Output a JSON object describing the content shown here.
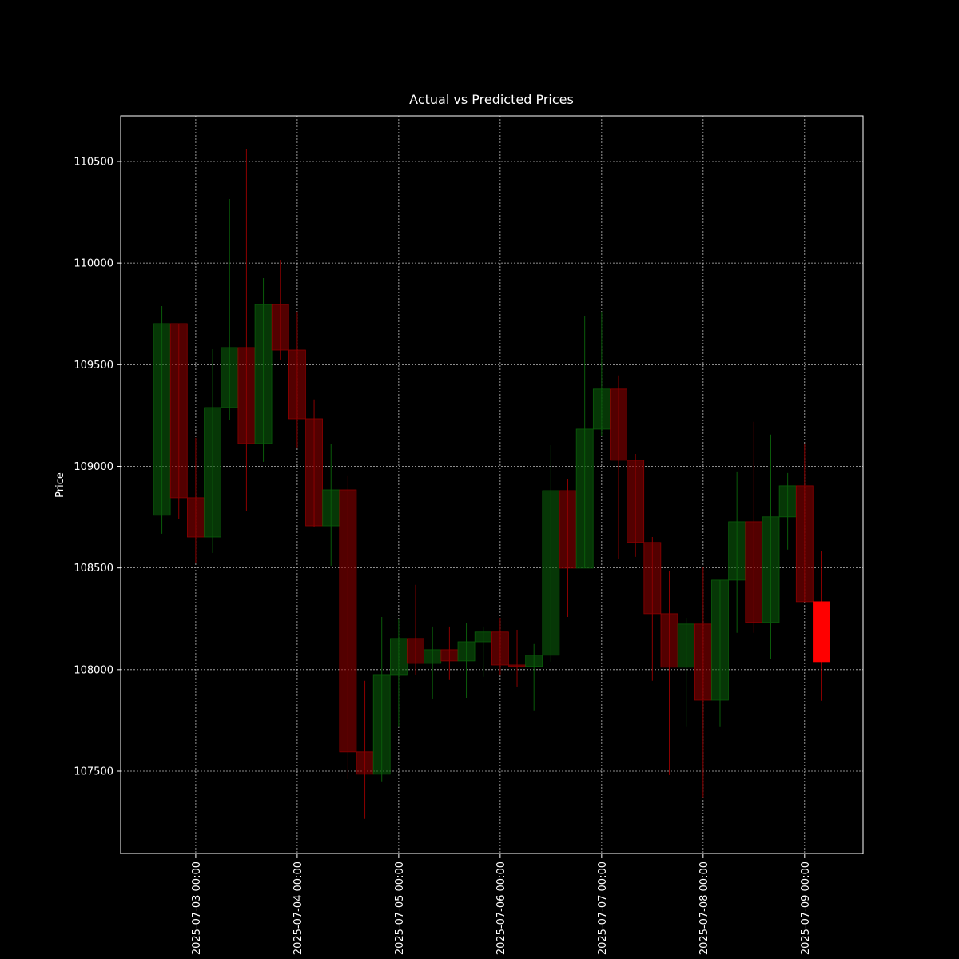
{
  "chart_data": {
    "type": "candlestick",
    "title": "Actual vs Predicted Prices",
    "ylabel": "Price",
    "x": [
      "2025-07-02 16:00",
      "2025-07-02 20:00",
      "2025-07-03 00:00",
      "2025-07-03 04:00",
      "2025-07-03 08:00",
      "2025-07-03 12:00",
      "2025-07-03 16:00",
      "2025-07-03 20:00",
      "2025-07-04 00:00",
      "2025-07-04 04:00",
      "2025-07-04 08:00",
      "2025-07-04 12:00",
      "2025-07-04 16:00",
      "2025-07-04 20:00",
      "2025-07-05 00:00",
      "2025-07-05 04:00",
      "2025-07-05 08:00",
      "2025-07-05 12:00",
      "2025-07-05 16:00",
      "2025-07-05 20:00",
      "2025-07-06 00:00",
      "2025-07-06 04:00",
      "2025-07-06 08:00",
      "2025-07-06 12:00",
      "2025-07-06 16:00",
      "2025-07-06 20:00",
      "2025-07-07 00:00",
      "2025-07-07 04:00",
      "2025-07-07 08:00",
      "2025-07-07 12:00",
      "2025-07-07 16:00",
      "2025-07-07 20:00",
      "2025-07-08 00:00",
      "2025-07-08 04:00",
      "2025-07-08 08:00",
      "2025-07-08 12:00",
      "2025-07-08 16:00",
      "2025-07-08 20:00",
      "2025-07-09 00:00"
    ],
    "open": [
      108759,
      109702,
      108845,
      108652,
      109289,
      109584,
      109112,
      109796,
      109572,
      109234,
      108707,
      108884,
      107595,
      107485,
      107972,
      108153,
      108031,
      108098,
      108043,
      108137,
      108185,
      108023,
      108016,
      108071,
      108880,
      108499,
      109183,
      109380,
      109030,
      108625,
      108275,
      108012,
      108224,
      107850,
      108440,
      108727,
      108232,
      108751,
      108904
    ],
    "high": [
      109788,
      109702,
      109140,
      109576,
      110315,
      110563,
      109926,
      110016,
      109761,
      109329,
      109108,
      108955,
      107945,
      108259,
      108248,
      108417,
      108212,
      108212,
      108228,
      108212,
      108255,
      108196,
      108126,
      109104,
      108939,
      109741,
      109761,
      109447,
      109061,
      108652,
      108483,
      108255,
      108503,
      108440,
      108975,
      109219,
      109156,
      108967,
      109108
    ],
    "low": [
      108668,
      108739,
      108523,
      108574,
      109230,
      108778,
      109022,
      109525,
      109093,
      108700,
      108511,
      107461,
      107265,
      107450,
      107717,
      107972,
      107854,
      107949,
      107858,
      107965,
      107972,
      107913,
      107796,
      108039,
      108259,
      108499,
      109150,
      108542,
      108554,
      107945,
      107481,
      107717,
      107371,
      107717,
      108181,
      108181,
      108051,
      108590,
      108334
    ],
    "close": [
      109702,
      108845,
      108652,
      109289,
      109584,
      109112,
      109796,
      109572,
      109234,
      108707,
      108884,
      107595,
      107485,
      107972,
      108153,
      108031,
      108098,
      108043,
      108137,
      108185,
      108023,
      108016,
      108071,
      108880,
      108499,
      109183,
      109380,
      109030,
      108625,
      108275,
      108012,
      108224,
      107850,
      108440,
      108727,
      108232,
      108751,
      108904,
      108334
    ],
    "up_color": "#0a5c0a",
    "down_color": "#8b0000",
    "predicted": {
      "x": "2025-07-09 04:00",
      "open": 108334,
      "high": 108582,
      "low": 107847,
      "close": 108039,
      "color": "#ff0000"
    },
    "xlim": [
      "2025-07-02 06:15",
      "2025-07-09 13:50"
    ],
    "ylim": [
      107095,
      110724
    ],
    "xticks": [
      "2025-07-03 00:00",
      "2025-07-04 00:00",
      "2025-07-05 00:00",
      "2025-07-06 00:00",
      "2025-07-07 00:00",
      "2025-07-08 00:00",
      "2025-07-09 00:00"
    ],
    "yticks": [
      107500,
      108000,
      108500,
      109000,
      109500,
      110000,
      110500
    ],
    "grid": true
  }
}
